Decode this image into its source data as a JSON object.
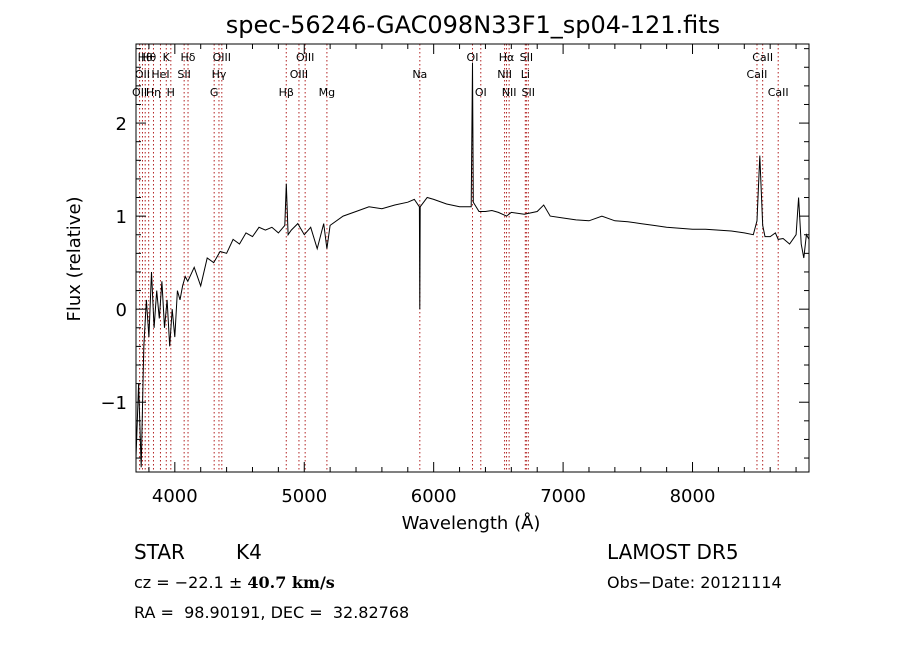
{
  "chart_data": {
    "type": "line",
    "title": "spec-56246-GAC098N33F1_sp04-121.fits",
    "xlabel": "Wavelength (Å)",
    "ylabel": "Flux (relative)",
    "xlim": [
      3700,
      8900
    ],
    "ylim": [
      -1.75,
      2.85
    ],
    "x_ticks": [
      4000,
      5000,
      6000,
      7000,
      8000
    ],
    "y_ticks": [
      -1,
      0,
      1,
      2
    ],
    "grid": false,
    "series": [
      {
        "color": "#000000",
        "points": [
          [
            3700,
            -1.6
          ],
          [
            3720,
            -0.8
          ],
          [
            3740,
            -1.7
          ],
          [
            3760,
            -0.4
          ],
          [
            3780,
            0.1
          ],
          [
            3800,
            -0.3
          ],
          [
            3820,
            0.4
          ],
          [
            3840,
            -0.2
          ],
          [
            3860,
            0.2
          ],
          [
            3880,
            -0.1
          ],
          [
            3900,
            0.3
          ],
          [
            3920,
            -0.2
          ],
          [
            3940,
            0.1
          ],
          [
            3960,
            -0.4
          ],
          [
            3980,
            0.0
          ],
          [
            4000,
            -0.3
          ],
          [
            4020,
            0.2
          ],
          [
            4040,
            0.1
          ],
          [
            4060,
            0.25
          ],
          [
            4080,
            0.35
          ],
          [
            4100,
            0.3
          ],
          [
            4150,
            0.45
          ],
          [
            4200,
            0.25
          ],
          [
            4250,
            0.55
          ],
          [
            4300,
            0.5
          ],
          [
            4350,
            0.62
          ],
          [
            4400,
            0.6
          ],
          [
            4450,
            0.75
          ],
          [
            4500,
            0.7
          ],
          [
            4550,
            0.82
          ],
          [
            4600,
            0.78
          ],
          [
            4650,
            0.88
          ],
          [
            4700,
            0.85
          ],
          [
            4750,
            0.88
          ],
          [
            4800,
            0.82
          ],
          [
            4850,
            0.9
          ],
          [
            4861,
            1.35
          ],
          [
            4875,
            0.8
          ],
          [
            4900,
            0.85
          ],
          [
            4950,
            0.92
          ],
          [
            5000,
            0.8
          ],
          [
            5050,
            0.88
          ],
          [
            5100,
            0.65
          ],
          [
            5150,
            0.92
          ],
          [
            5175,
            0.65
          ],
          [
            5200,
            0.9
          ],
          [
            5300,
            1.0
          ],
          [
            5400,
            1.05
          ],
          [
            5500,
            1.1
          ],
          [
            5600,
            1.08
          ],
          [
            5700,
            1.12
          ],
          [
            5800,
            1.15
          ],
          [
            5850,
            1.18
          ],
          [
            5890,
            1.1
          ],
          [
            5893,
            0.0
          ],
          [
            5896,
            1.1
          ],
          [
            5950,
            1.2
          ],
          [
            6000,
            1.18
          ],
          [
            6100,
            1.13
          ],
          [
            6200,
            1.1
          ],
          [
            6290,
            1.1
          ],
          [
            6300,
            2.65
          ],
          [
            6306,
            1.15
          ],
          [
            6350,
            1.05
          ],
          [
            6400,
            1.05
          ],
          [
            6450,
            1.06
          ],
          [
            6500,
            1.04
          ],
          [
            6563,
            1.0
          ],
          [
            6600,
            1.04
          ],
          [
            6700,
            1.02
          ],
          [
            6800,
            1.05
          ],
          [
            6850,
            1.12
          ],
          [
            6900,
            1.0
          ],
          [
            7000,
            0.98
          ],
          [
            7100,
            0.96
          ],
          [
            7200,
            0.95
          ],
          [
            7300,
            1.0
          ],
          [
            7400,
            0.95
          ],
          [
            7500,
            0.94
          ],
          [
            7600,
            0.92
          ],
          [
            7700,
            0.9
          ],
          [
            7800,
            0.88
          ],
          [
            7900,
            0.87
          ],
          [
            8000,
            0.86
          ],
          [
            8100,
            0.86
          ],
          [
            8200,
            0.85
          ],
          [
            8300,
            0.84
          ],
          [
            8400,
            0.82
          ],
          [
            8470,
            0.8
          ],
          [
            8498,
            0.95
          ],
          [
            8520,
            1.65
          ],
          [
            8542,
            0.9
          ],
          [
            8560,
            0.78
          ],
          [
            8600,
            0.78
          ],
          [
            8640,
            0.82
          ],
          [
            8662,
            0.75
          ],
          [
            8700,
            0.76
          ],
          [
            8750,
            0.7
          ],
          [
            8800,
            0.8
          ],
          [
            8820,
            1.2
          ],
          [
            8840,
            0.7
          ],
          [
            8860,
            0.55
          ],
          [
            8880,
            0.8
          ],
          [
            8900,
            0.75
          ]
        ]
      }
    ],
    "line_color": "#b22222",
    "lines": [
      {
        "x": 3728,
        "label": "OII",
        "row": 2
      },
      {
        "x": 3750,
        "label": "OII",
        "row": 1
      },
      {
        "x": 3771,
        "label": "Hθ",
        "row": 0
      },
      {
        "x": 3798,
        "label": "Hθ",
        "row": 0
      },
      {
        "x": 3835,
        "label": "Hη",
        "row": 2
      },
      {
        "x": 3889,
        "label": "HeI",
        "row": 1
      },
      {
        "x": 3934,
        "label": "K",
        "row": 0
      },
      {
        "x": 3969,
        "label": "H",
        "row": 2
      },
      {
        "x": 4072,
        "label": "SII",
        "row": 1
      },
      {
        "x": 4102,
        "label": "Hδ",
        "row": 0
      },
      {
        "x": 4304,
        "label": "G",
        "row": 2
      },
      {
        "x": 4341,
        "label": "Hγ",
        "row": 1
      },
      {
        "x": 4363,
        "label": "OIII",
        "row": 0
      },
      {
        "x": 4861,
        "label": "Hβ",
        "row": 2
      },
      {
        "x": 4959,
        "label": "OIII",
        "row": 1
      },
      {
        "x": 5007,
        "label": "OIII",
        "row": 0
      },
      {
        "x": 5175,
        "label": "Mg",
        "row": 2
      },
      {
        "x": 5893,
        "label": "Na",
        "row": 1
      },
      {
        "x": 6300,
        "label": "OI",
        "row": 0
      },
      {
        "x": 6364,
        "label": "OI",
        "row": 2
      },
      {
        "x": 6548,
        "label": "NII",
        "row": 1
      },
      {
        "x": 6563,
        "label": "Hα",
        "row": 0
      },
      {
        "x": 6583,
        "label": "NII",
        "row": 2
      },
      {
        "x": 6708,
        "label": "Li",
        "row": 1
      },
      {
        "x": 6716,
        "label": "SII",
        "row": 0
      },
      {
        "x": 6731,
        "label": "SII",
        "row": 2
      },
      {
        "x": 8498,
        "label": "CaII",
        "row": 1
      },
      {
        "x": 8542,
        "label": "CaII",
        "row": 0
      },
      {
        "x": 8662,
        "label": "CaII",
        "row": 2
      }
    ]
  },
  "info": {
    "class": "STAR",
    "subclass": "K4",
    "survey": "LAMOST DR5",
    "cz_prefix": "cz = −22.1 ± ",
    "cz_error": "40.7 km/s",
    "obs_date": "Obs−Date: 20121114",
    "radec": "RA =  98.90191, DEC =  32.82768"
  }
}
